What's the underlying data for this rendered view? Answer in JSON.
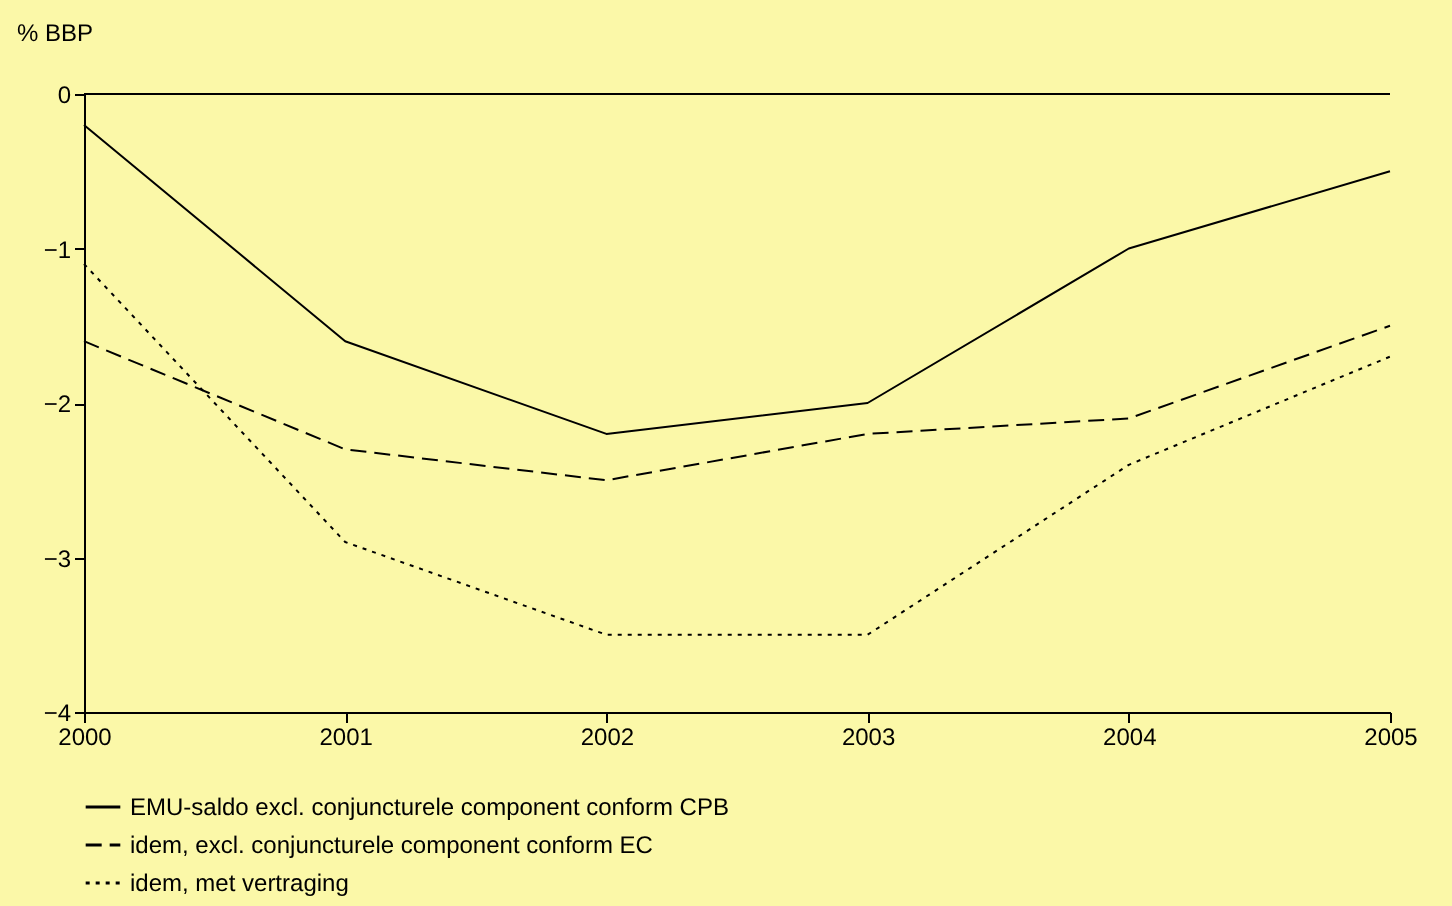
{
  "chart_data": {
    "type": "line",
    "ylabel": "% BBP",
    "x": [
      2000,
      2001,
      2002,
      2003,
      2004,
      2005
    ],
    "xlim": [
      2000,
      2005
    ],
    "xticks": [
      2000,
      2001,
      2002,
      2003,
      2004,
      2005
    ],
    "ylim": [
      -4,
      0
    ],
    "yticks": [
      -4,
      -3,
      -2,
      -1,
      0
    ],
    "series": [
      {
        "name": "EMU-saldo excl. conjuncturele component conform CPB",
        "color": "#000000",
        "line_style": "solid",
        "values": [
          -0.2,
          -1.6,
          -2.2,
          -2.0,
          -1.0,
          -0.5
        ]
      },
      {
        "name": "idem, excl. conjuncturele component conform EC",
        "color": "#000000",
        "line_style": "dashed",
        "values": [
          -1.6,
          -2.3,
          -2.5,
          -2.2,
          -2.1,
          -1.5
        ]
      },
      {
        "name": "idem, met vertraging",
        "color": "#000000",
        "line_style": "dotted",
        "values": [
          -1.1,
          -2.9,
          -3.5,
          -3.5,
          -2.4,
          -1.7
        ]
      }
    ],
    "ref_lines": [
      {
        "axis": "y",
        "value": 0,
        "color": "#000000"
      }
    ],
    "grid": false,
    "legend": "bottom",
    "marker": "none"
  }
}
